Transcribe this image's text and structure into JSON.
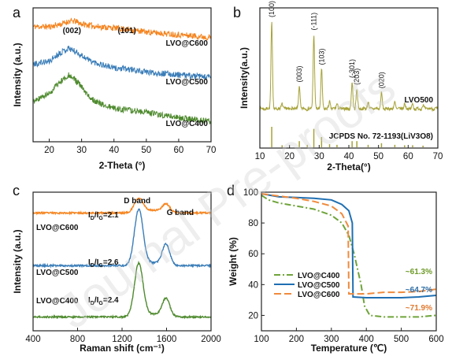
{
  "watermark": "Journal Pre-proofs",
  "colors": {
    "orange": "#F5841F",
    "blue": "#3A7DB8",
    "green": "#4E8A2E",
    "olive": "#A6A238",
    "tga_green": "#6FA43A",
    "tga_blue": "#1F6FB2",
    "tga_orange": "#F08A3C",
    "ann_green": "#6E9A28",
    "ann_blue": "#2E6DA4",
    "ann_orange": "#E07A30"
  },
  "chart_data": [
    {
      "panel": "a",
      "type": "line",
      "xlabel": "2-Theta (°)",
      "ylabel": "Intensity (a.u.)",
      "xlim": [
        15,
        70
      ],
      "xticks": [
        20,
        30,
        40,
        50,
        60,
        70
      ],
      "annotations": [
        {
          "text": "(002)",
          "x": 27
        },
        {
          "text": "(101)",
          "x": 44
        }
      ],
      "series": [
        {
          "name": "LVO@C600",
          "color": "#F5841F",
          "points": [
            [
              15,
              0.86
            ],
            [
              20,
              0.86
            ],
            [
              24,
              0.88
            ],
            [
              26,
              0.9
            ],
            [
              28,
              0.9
            ],
            [
              30,
              0.88
            ],
            [
              35,
              0.86
            ],
            [
              40,
              0.85
            ],
            [
              44,
              0.84
            ],
            [
              50,
              0.82
            ],
            [
              60,
              0.8
            ],
            [
              70,
              0.78
            ]
          ]
        },
        {
          "name": "LVO@C500",
          "color": "#3A7DB8",
          "points": [
            [
              15,
              0.58
            ],
            [
              20,
              0.6
            ],
            [
              23,
              0.66
            ],
            [
              26,
              0.7
            ],
            [
              29,
              0.66
            ],
            [
              33,
              0.6
            ],
            [
              40,
              0.55
            ],
            [
              45,
              0.54
            ],
            [
              50,
              0.52
            ],
            [
              60,
              0.5
            ],
            [
              70,
              0.48
            ]
          ]
        },
        {
          "name": "LVO@C400",
          "color": "#4E8A2E",
          "points": [
            [
              15,
              0.3
            ],
            [
              20,
              0.36
            ],
            [
              23,
              0.44
            ],
            [
              26,
              0.5
            ],
            [
              29,
              0.44
            ],
            [
              32,
              0.34
            ],
            [
              36,
              0.28
            ],
            [
              40,
              0.25
            ],
            [
              50,
              0.22
            ],
            [
              60,
              0.18
            ],
            [
              70,
              0.15
            ]
          ]
        }
      ]
    },
    {
      "panel": "b",
      "type": "line",
      "xlabel": "2-Theta(°)",
      "ylabel": "Intensity(a.u.)",
      "xlim": [
        10,
        70
      ],
      "xticks": [
        10,
        20,
        30,
        40,
        50,
        60,
        70
      ],
      "series_label": "LVO500",
      "reference_label": "JCPDS No. 72-1193(LiV3O8)",
      "peaks": [
        {
          "x": 14.0,
          "h": 1.0,
          "label": "(100)"
        },
        {
          "x": 23.3,
          "h": 0.25,
          "label": "(003)"
        },
        {
          "x": 28.2,
          "h": 0.85,
          "label": "(-111)"
        },
        {
          "x": 30.8,
          "h": 0.45,
          "label": "(103)"
        },
        {
          "x": 41.1,
          "h": 0.3,
          "label": "(-301)"
        },
        {
          "x": 42.7,
          "h": 0.22,
          "label": "(203)"
        },
        {
          "x": 51.0,
          "h": 0.18,
          "label": "(020)"
        },
        {
          "x": 17.5,
          "h": 0.06,
          "label": ""
        },
        {
          "x": 33.5,
          "h": 0.08,
          "label": ""
        },
        {
          "x": 36.0,
          "h": 0.06,
          "label": ""
        },
        {
          "x": 46.5,
          "h": 0.08,
          "label": ""
        },
        {
          "x": 55.5,
          "h": 0.07,
          "label": ""
        },
        {
          "x": 58.8,
          "h": 0.06,
          "label": ""
        },
        {
          "x": 61.5,
          "h": 0.05,
          "label": ""
        },
        {
          "x": 65.0,
          "h": 0.04,
          "label": ""
        }
      ],
      "reference_lines": [
        [
          14.0,
          1.0
        ],
        [
          17.5,
          0.1
        ],
        [
          23.3,
          0.3
        ],
        [
          26.0,
          0.12
        ],
        [
          28.2,
          0.9
        ],
        [
          30.8,
          0.5
        ],
        [
          33.5,
          0.15
        ],
        [
          36.0,
          0.12
        ],
        [
          41.1,
          0.3
        ],
        [
          42.7,
          0.3
        ],
        [
          46.5,
          0.12
        ],
        [
          51.0,
          0.2
        ],
        [
          55.5,
          0.12
        ],
        [
          58.8,
          0.1
        ],
        [
          61.5,
          0.1
        ],
        [
          65.0,
          0.08
        ]
      ]
    },
    {
      "panel": "c",
      "type": "line",
      "xlabel": "Raman shift (cm⁻¹)",
      "ylabel": "Intensity (a.u.)",
      "xlim": [
        400,
        2000
      ],
      "xticks": [
        400,
        800,
        1200,
        1600,
        2000
      ],
      "bands": [
        {
          "text": "D band",
          "x": 1350
        },
        {
          "text": "G band",
          "x": 1595
        }
      ],
      "series": [
        {
          "name": "LVO@C600",
          "ratio": "2.1",
          "color": "#F5841F",
          "baseline": 0.85,
          "d": 0.1,
          "g": 0.06
        },
        {
          "name": "LVO@C500",
          "ratio": "2.6",
          "color": "#3A7DB8",
          "baseline": 0.47,
          "d": 0.4,
          "g": 0.15
        },
        {
          "name": "LVO@C400",
          "ratio": "2.4",
          "color": "#4E8A2E",
          "baseline": 0.1,
          "d": 0.38,
          "g": 0.13
        }
      ]
    },
    {
      "panel": "d",
      "type": "line",
      "xlabel": "Temperature (℃)",
      "ylabel": "Weight (%)",
      "xlim": [
        100,
        600
      ],
      "ylim": [
        10,
        100
      ],
      "xticks": [
        100,
        200,
        300,
        400,
        500,
        600
      ],
      "yticks": [
        20,
        40,
        60,
        80,
        100
      ],
      "annotations": [
        {
          "text": "~61.3%",
          "color": "#6E9A28"
        },
        {
          "text": "~64.7%",
          "color": "#2E6DA4"
        },
        {
          "text": "~71.9%",
          "color": "#E07A30"
        }
      ],
      "series": [
        {
          "name": "LVO@C400",
          "color": "#6FA43A",
          "dash": "8,3,2,3",
          "points": [
            [
              100,
              98
            ],
            [
              120,
              95
            ],
            [
              150,
              93
            ],
            [
              200,
              91
            ],
            [
              250,
              89
            ],
            [
              300,
              85
            ],
            [
              330,
              80
            ],
            [
              350,
              72
            ],
            [
              365,
              60
            ],
            [
              375,
              50
            ],
            [
              385,
              40
            ],
            [
              395,
              26
            ],
            [
              410,
              20
            ],
            [
              450,
              19
            ],
            [
              500,
              19
            ],
            [
              550,
              19
            ],
            [
              600,
              20
            ]
          ]
        },
        {
          "name": "LVO@C500",
          "color": "#1F6FB2",
          "dash": "",
          "points": [
            [
              100,
              99
            ],
            [
              150,
              97
            ],
            [
              200,
              96.5
            ],
            [
              250,
              96
            ],
            [
              300,
              95
            ],
            [
              330,
              92
            ],
            [
              350,
              88
            ],
            [
              360,
              80
            ],
            [
              362,
              32
            ],
            [
              400,
              31.5
            ],
            [
              450,
              31.5
            ],
            [
              500,
              31.5
            ],
            [
              550,
              32
            ],
            [
              600,
              33
            ]
          ]
        },
        {
          "name": "LVO@C600",
          "color": "#F08A3C",
          "dash": "9,4",
          "points": [
            [
              100,
              99
            ],
            [
              150,
              97.5
            ],
            [
              200,
              96
            ],
            [
              250,
              94
            ],
            [
              300,
              91
            ],
            [
              330,
              86
            ],
            [
              348,
              78
            ],
            [
              350,
              34
            ],
            [
              400,
              34
            ],
            [
              450,
              35
            ],
            [
              500,
              35
            ],
            [
              550,
              35.5
            ],
            [
              600,
              37
            ]
          ]
        }
      ]
    }
  ]
}
